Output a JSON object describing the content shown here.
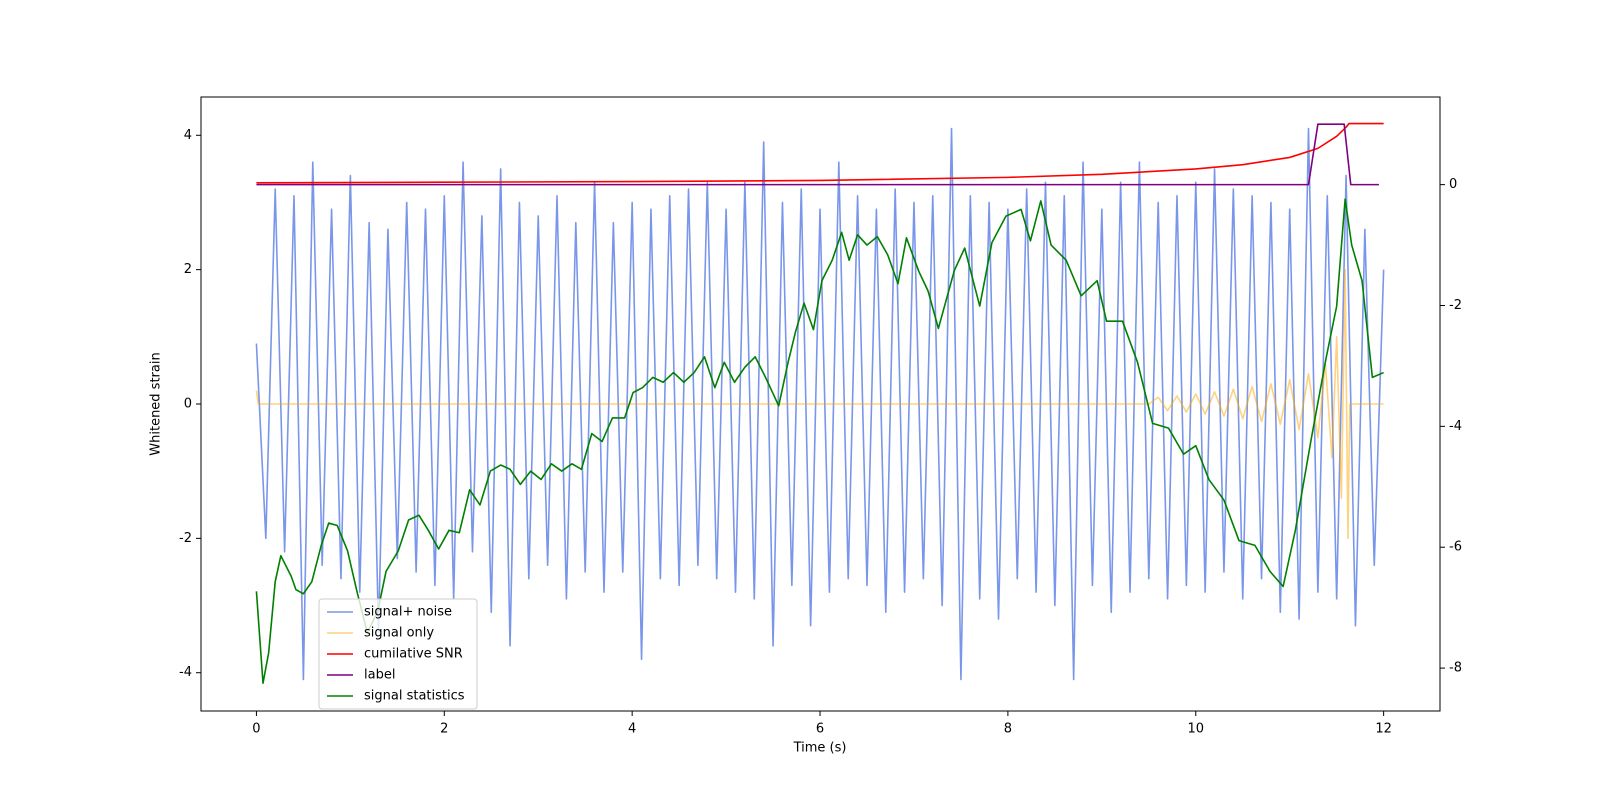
{
  "chart_data": {
    "type": "line",
    "xlabel": "Time (s)",
    "ylabel": "Whitened strain",
    "xlim": [
      -0.59,
      12.6
    ],
    "ylim": [
      -4.57,
      4.57
    ],
    "y2lim": [
      -8.71,
      1.45
    ],
    "xticks": [
      0,
      2,
      4,
      6,
      8,
      10,
      12
    ],
    "yticks": [
      -4,
      -2,
      0,
      2,
      4
    ],
    "y2ticks": [
      -8,
      -6,
      -4,
      -2,
      0
    ],
    "legend": "lower left",
    "series": [
      {
        "name": "signal+ noise",
        "color": "#4169e1",
        "opacity": 0.7,
        "axis": "y",
        "x": [
          0,
          0.1,
          0.2,
          0.3,
          0.4,
          0.5,
          0.6,
          0.7,
          0.8,
          0.9,
          1,
          1.1,
          1.2,
          1.3,
          1.4,
          1.5,
          1.6,
          1.7,
          1.8,
          1.9,
          2,
          2.1,
          2.2,
          2.3,
          2.4,
          2.5,
          2.6,
          2.7,
          2.8,
          2.9,
          3,
          3.1,
          3.2,
          3.3,
          3.4,
          3.5,
          3.6,
          3.7,
          3.8,
          3.9,
          4,
          4.1,
          4.2,
          4.3,
          4.4,
          4.5,
          4.6,
          4.7,
          4.8,
          4.9,
          5,
          5.1,
          5.2,
          5.3,
          5.4,
          5.5,
          5.6,
          5.7,
          5.8,
          5.9,
          6,
          6.1,
          6.2,
          6.3,
          6.4,
          6.5,
          6.6,
          6.7,
          6.8,
          6.9,
          7,
          7.1,
          7.2,
          7.3,
          7.4,
          7.5,
          7.6,
          7.7,
          7.8,
          7.9,
          8,
          8.1,
          8.2,
          8.3,
          8.4,
          8.5,
          8.6,
          8.7,
          8.8,
          8.9,
          9,
          9.1,
          9.2,
          9.3,
          9.4,
          9.5,
          9.6,
          9.7,
          9.8,
          9.9,
          10,
          10.1,
          10.2,
          10.3,
          10.4,
          10.5,
          10.6,
          10.7,
          10.8,
          10.9,
          11,
          11.1,
          11.2,
          11.3,
          11.4,
          11.5,
          11.6,
          11.7,
          11.8,
          11.9,
          12
        ],
        "values": [
          0.9,
          -2.0,
          3.2,
          -2.2,
          3.1,
          -4.1,
          3.6,
          -2.4,
          2.9,
          -2.6,
          3.4,
          -2.8,
          2.7,
          -3.4,
          2.6,
          -2.3,
          3.0,
          -2.5,
          2.9,
          -2.7,
          3.1,
          -2.9,
          3.6,
          -2.2,
          2.8,
          -3.1,
          3.5,
          -3.6,
          3.0,
          -2.6,
          2.8,
          -2.4,
          3.1,
          -2.9,
          2.7,
          -2.5,
          3.3,
          -2.8,
          2.7,
          -2.5,
          3.0,
          -3.8,
          2.9,
          -2.6,
          3.1,
          -2.7,
          3.2,
          -2.4,
          3.3,
          -2.6,
          2.9,
          -2.8,
          3.3,
          -2.9,
          3.9,
          -3.6,
          3.0,
          -2.7,
          3.2,
          -3.3,
          2.9,
          -2.8,
          3.6,
          -2.6,
          3.1,
          -2.7,
          2.9,
          -3.1,
          3.2,
          -2.8,
          3.0,
          -2.6,
          3.1,
          -3.0,
          4.1,
          -4.1,
          3.1,
          -2.9,
          3.0,
          -3.2,
          2.9,
          -2.6,
          3.2,
          -2.8,
          3.3,
          -3.0,
          3.1,
          -4.1,
          3.6,
          -2.7,
          2.9,
          -3.1,
          3.3,
          -2.8,
          3.6,
          -2.6,
          3.0,
          -2.9,
          3.1,
          -2.7,
          3.3,
          -2.8,
          3.5,
          -2.5,
          3.2,
          -2.9,
          3.1,
          -2.6,
          3.0,
          -3.1,
          2.9,
          -3.2,
          4.1,
          -2.8,
          3.1,
          -2.9,
          3.4,
          -3.3,
          2.6,
          -2.4,
          2.0
        ]
      },
      {
        "name": "signal only",
        "color": "#ffa500",
        "opacity": 0.5,
        "axis": "y",
        "x": [
          0,
          0.02,
          9.5,
          9.6,
          9.7,
          9.8,
          9.9,
          10,
          10.1,
          10.2,
          10.3,
          10.4,
          10.5,
          10.6,
          10.7,
          10.8,
          10.9,
          11,
          11.1,
          11.2,
          11.3,
          11.38,
          11.45,
          11.5,
          11.55,
          11.59,
          11.62,
          11.64,
          12
        ],
        "values": [
          0.2,
          0,
          0,
          0.1,
          -0.1,
          0.12,
          -0.12,
          0.15,
          -0.15,
          0.18,
          -0.18,
          0.22,
          -0.22,
          0.26,
          -0.26,
          0.3,
          -0.3,
          0.36,
          -0.38,
          0.45,
          -0.5,
          0.6,
          -0.8,
          1.0,
          -1.4,
          2.0,
          -2.0,
          0,
          0
        ]
      },
      {
        "name": "cumilative SNR",
        "color": "#ff0000",
        "opacity": 1,
        "axis": "y2",
        "x": [
          0,
          2,
          4,
          6,
          8,
          9,
          10,
          10.5,
          11,
          11.3,
          11.5,
          11.6,
          11.63,
          12
        ],
        "values": [
          0.03,
          0.04,
          0.05,
          0.07,
          0.12,
          0.17,
          0.26,
          0.33,
          0.45,
          0.6,
          0.8,
          0.95,
          1.01,
          1.01
        ]
      },
      {
        "name": "label",
        "color": "#800080",
        "opacity": 1,
        "axis": "y2",
        "x": [
          0,
          11.2,
          11.3,
          11.58,
          11.65,
          11.95
        ],
        "values": [
          0,
          0,
          1,
          1,
          0,
          0
        ]
      },
      {
        "name": "signal statistics",
        "color": "#008000",
        "opacity": 1,
        "axis": "y2",
        "x": [
          0,
          0.07,
          0.13,
          0.2,
          0.26,
          0.37,
          0.42,
          0.5,
          0.59,
          0.69,
          0.77,
          0.86,
          0.97,
          1.07,
          1.18,
          1.29,
          1.38,
          1.51,
          1.62,
          1.73,
          1.83,
          1.94,
          2.05,
          2.16,
          2.27,
          2.38,
          2.49,
          2.6,
          2.7,
          2.81,
          2.92,
          3.03,
          3.14,
          3.25,
          3.36,
          3.46,
          3.57,
          3.68,
          3.79,
          3.92,
          4.01,
          4.11,
          4.22,
          4.33,
          4.44,
          4.55,
          4.66,
          4.77,
          4.88,
          4.98,
          5.09,
          5.2,
          5.31,
          5.42,
          5.56,
          5.66,
          5.74,
          5.83,
          5.93,
          6.02,
          6.13,
          6.23,
          6.31,
          6.4,
          6.5,
          6.61,
          6.72,
          6.83,
          6.92,
          7.05,
          7.15,
          7.26,
          7.43,
          7.54,
          7.7,
          7.83,
          7.98,
          8.14,
          8.24,
          8.35,
          8.46,
          8.62,
          8.78,
          8.95,
          9.05,
          9.22,
          9.38,
          9.54,
          9.71,
          9.87,
          10.0,
          10.14,
          10.3,
          10.46,
          10.63,
          10.79,
          10.93,
          11.06,
          11.23,
          11.39,
          11.5,
          11.59,
          11.66,
          11.77,
          11.88,
          12.0
        ],
        "values": [
          -6.73,
          -8.25,
          -7.75,
          -6.57,
          -6.14,
          -6.48,
          -6.7,
          -6.77,
          -6.57,
          -5.97,
          -5.6,
          -5.64,
          -6.06,
          -6.73,
          -7.41,
          -7.07,
          -6.4,
          -6.06,
          -5.55,
          -5.47,
          -5.72,
          -6.03,
          -5.72,
          -5.76,
          -5.05,
          -5.3,
          -4.74,
          -4.64,
          -4.71,
          -4.96,
          -4.74,
          -4.88,
          -4.62,
          -4.74,
          -4.62,
          -4.71,
          -4.12,
          -4.25,
          -3.86,
          -3.86,
          -3.44,
          -3.36,
          -3.19,
          -3.27,
          -3.11,
          -3.27,
          -3.11,
          -2.85,
          -3.36,
          -2.94,
          -3.27,
          -3.02,
          -2.85,
          -3.19,
          -3.66,
          -2.94,
          -2.43,
          -1.96,
          -2.4,
          -1.59,
          -1.25,
          -0.79,
          -1.25,
          -0.83,
          -1.0,
          -0.86,
          -1.16,
          -1.64,
          -0.88,
          -1.43,
          -1.76,
          -2.38,
          -1.42,
          -1.05,
          -2.01,
          -0.96,
          -0.52,
          -0.41,
          -0.93,
          -0.27,
          -1.0,
          -1.25,
          -1.84,
          -1.59,
          -2.26,
          -2.26,
          -2.94,
          -3.95,
          -4.03,
          -4.46,
          -4.32,
          -4.88,
          -5.22,
          -5.89,
          -5.97,
          -6.4,
          -6.65,
          -5.72,
          -4.2,
          -2.85,
          -2.01,
          -0.24,
          -1.0,
          -1.59,
          -3.19,
          -3.11
        ]
      }
    ]
  }
}
